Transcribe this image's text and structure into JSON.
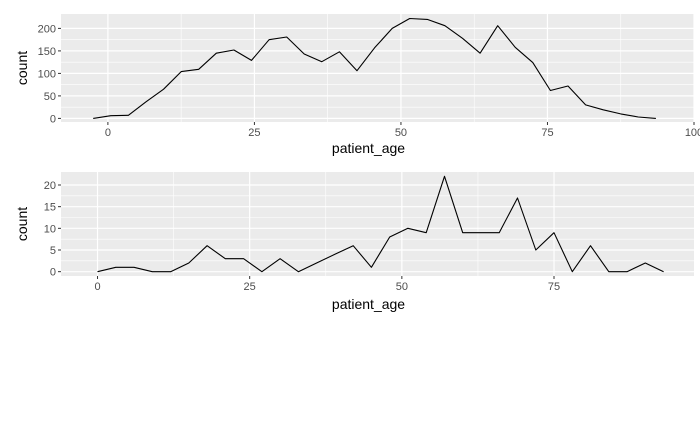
{
  "chart_data": [
    {
      "type": "line",
      "xlabel": "patient_age",
      "ylabel": "count",
      "xlim": [
        -8,
        100
      ],
      "ylim": [
        -8,
        232
      ],
      "x_ticks": [
        0,
        25,
        50,
        75,
        100
      ],
      "y_ticks": [
        0,
        50,
        100,
        150,
        200
      ],
      "grid": true,
      "legend": "none",
      "colors": {
        "panel": "#ebebeb",
        "grid": "#ffffff",
        "line": "#000000"
      },
      "series": [
        {
          "x": [
            -2.5,
            0.5,
            3.5,
            6.5,
            9.5,
            12.5,
            15.5,
            18.5,
            21.5,
            24.5,
            27.5,
            30.5,
            33.5,
            36.5,
            39.5,
            42.5,
            45.5,
            48.5,
            51.5,
            54.5,
            57.5,
            60.5,
            63.5,
            66.5,
            69.5,
            72.5,
            75.5,
            78.5,
            81.5,
            84.5,
            87.5,
            90.5,
            93.5
          ],
          "values": [
            0,
            6,
            7,
            37,
            65,
            104,
            109,
            145,
            152,
            129,
            175,
            181,
            143,
            126,
            148,
            106,
            157,
            200,
            222,
            220,
            206,
            178,
            145,
            206,
            158,
            124,
            62,
            72,
            30,
            19,
            10,
            3,
            0
          ]
        }
      ]
    },
    {
      "type": "line",
      "xlabel": "patient_age",
      "ylabel": "count",
      "xlim": [
        -6,
        98
      ],
      "ylim": [
        -1,
        23
      ],
      "x_ticks": [
        0,
        25,
        50,
        75
      ],
      "y_ticks": [
        0,
        5,
        10,
        15,
        20
      ],
      "grid": true,
      "legend": "none",
      "colors": {
        "panel": "#ebebeb",
        "grid": "#ffffff",
        "line": "#000000"
      },
      "series": [
        {
          "x": [
            0,
            3,
            6,
            9,
            12,
            15,
            18,
            21,
            24,
            27,
            30,
            33,
            36,
            39,
            42,
            45,
            48,
            51,
            54,
            57,
            60,
            63,
            66,
            69,
            72,
            75,
            78,
            81,
            84,
            87,
            90,
            93
          ],
          "values": [
            0,
            1,
            1,
            0,
            0,
            2,
            6,
            3,
            3,
            0,
            3,
            0,
            2,
            4,
            6,
            1,
            8,
            10,
            9,
            22,
            9,
            9,
            9,
            17,
            5,
            9,
            0,
            6,
            0,
            0,
            2,
            0
          ]
        }
      ]
    }
  ]
}
